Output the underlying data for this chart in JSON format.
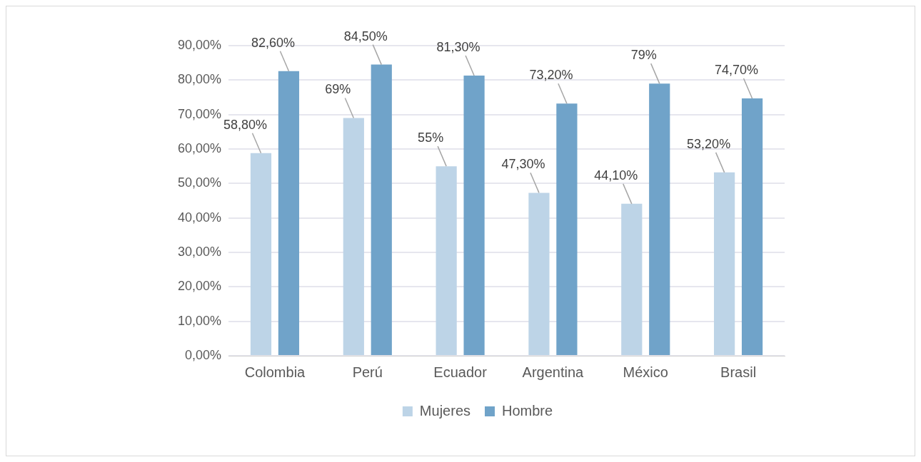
{
  "chart_data": {
    "type": "bar",
    "categories": [
      "Colombia",
      "Perú",
      "Ecuador",
      "Argentina",
      "México",
      "Brasil"
    ],
    "series": [
      {
        "name": "Mujeres",
        "color": "#bdd4e7",
        "values": [
          58.8,
          69,
          55,
          47.3,
          44.1,
          53.2
        ],
        "value_labels": [
          "58,80%",
          "69%",
          "55%",
          "47,30%",
          "44,10%",
          "53,20%"
        ]
      },
      {
        "name": "Hombre",
        "color": "#70a3c9",
        "values": [
          82.6,
          84.5,
          81.3,
          73.2,
          79,
          74.7
        ],
        "value_labels": [
          "82,60%",
          "84,50%",
          "81,30%",
          "73,20%",
          "79%",
          "74,70%"
        ]
      }
    ],
    "ylim": [
      0,
      90
    ],
    "yticks": [
      {
        "value": 0,
        "label": "0,00%"
      },
      {
        "value": 10,
        "label": "10,00%"
      },
      {
        "value": 20,
        "label": "20,00%"
      },
      {
        "value": 30,
        "label": "30,00%"
      },
      {
        "value": 40,
        "label": "40,00%"
      },
      {
        "value": 50,
        "label": "50,00%"
      },
      {
        "value": 60,
        "label": "60,00%"
      },
      {
        "value": 70,
        "label": "70,00%"
      },
      {
        "value": 80,
        "label": "80,00%"
      },
      {
        "value": 90,
        "label": "90,00%"
      }
    ],
    "grid": "y",
    "legend": "bottom"
  }
}
